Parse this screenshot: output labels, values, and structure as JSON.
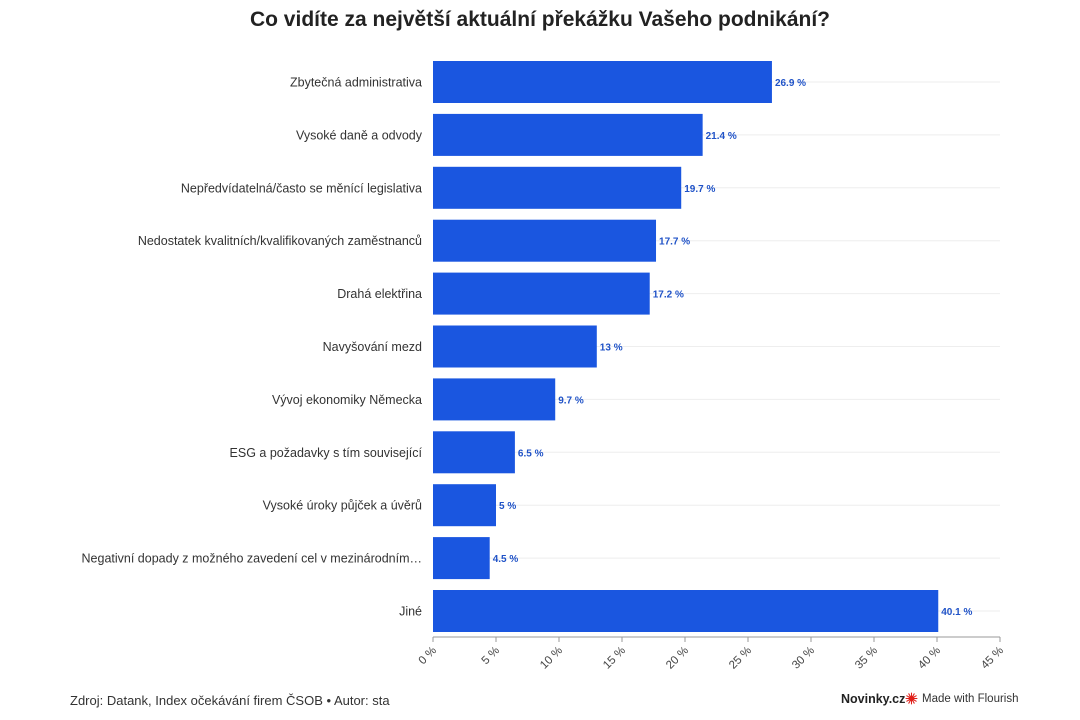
{
  "chart_data": {
    "type": "bar",
    "orientation": "horizontal",
    "title": "Co vidíte za největší aktuální překážku Vašeho podnikání?",
    "categories": [
      "Zbytečná administrativa",
      "Vysoké daně a odvody",
      "Nepředvídatelná/často se měnící legislativa",
      "Nedostatek kvalitních/kvalifikovaných zaměstnanců",
      "Drahá elektřina",
      "Navyšování mezd",
      "Vývoj ekonomiky Německa",
      "ESG a požadavky s tím související",
      "Vysoké úroky půjček a úvěrů",
      "Negativní dopady z možného zavedení cel v mezinárodním…",
      "Jiné"
    ],
    "values": [
      26.9,
      21.4,
      19.7,
      17.7,
      17.2,
      13,
      9.7,
      6.5,
      5,
      4.5,
      40.1
    ],
    "value_labels": [
      "26.9 %",
      "21.4 %",
      "19.7 %",
      "17.7 %",
      "17.2 %",
      "13 %",
      "9.7 %",
      "6.5 %",
      "5 %",
      "4.5 %",
      "40.1 %"
    ],
    "xlim": [
      0,
      45
    ],
    "x_ticks": [
      "0 %",
      "5 %",
      "10 %",
      "15 %",
      "20 %",
      "25 %",
      "30 %",
      "35 %",
      "40 %",
      "45 %"
    ],
    "grid": true,
    "bar_color": "#1a56e0",
    "label_color": "#1f52c7"
  },
  "footer": {
    "source": "Zdroj: Datank, Index očekávání firem ČSOB • Autor: sta",
    "brand": "Novinky.cz",
    "flourish": "Made with Flourish",
    "flourish_icon": "flourish-star-icon",
    "flourish_icon_color": "#e0201a"
  }
}
